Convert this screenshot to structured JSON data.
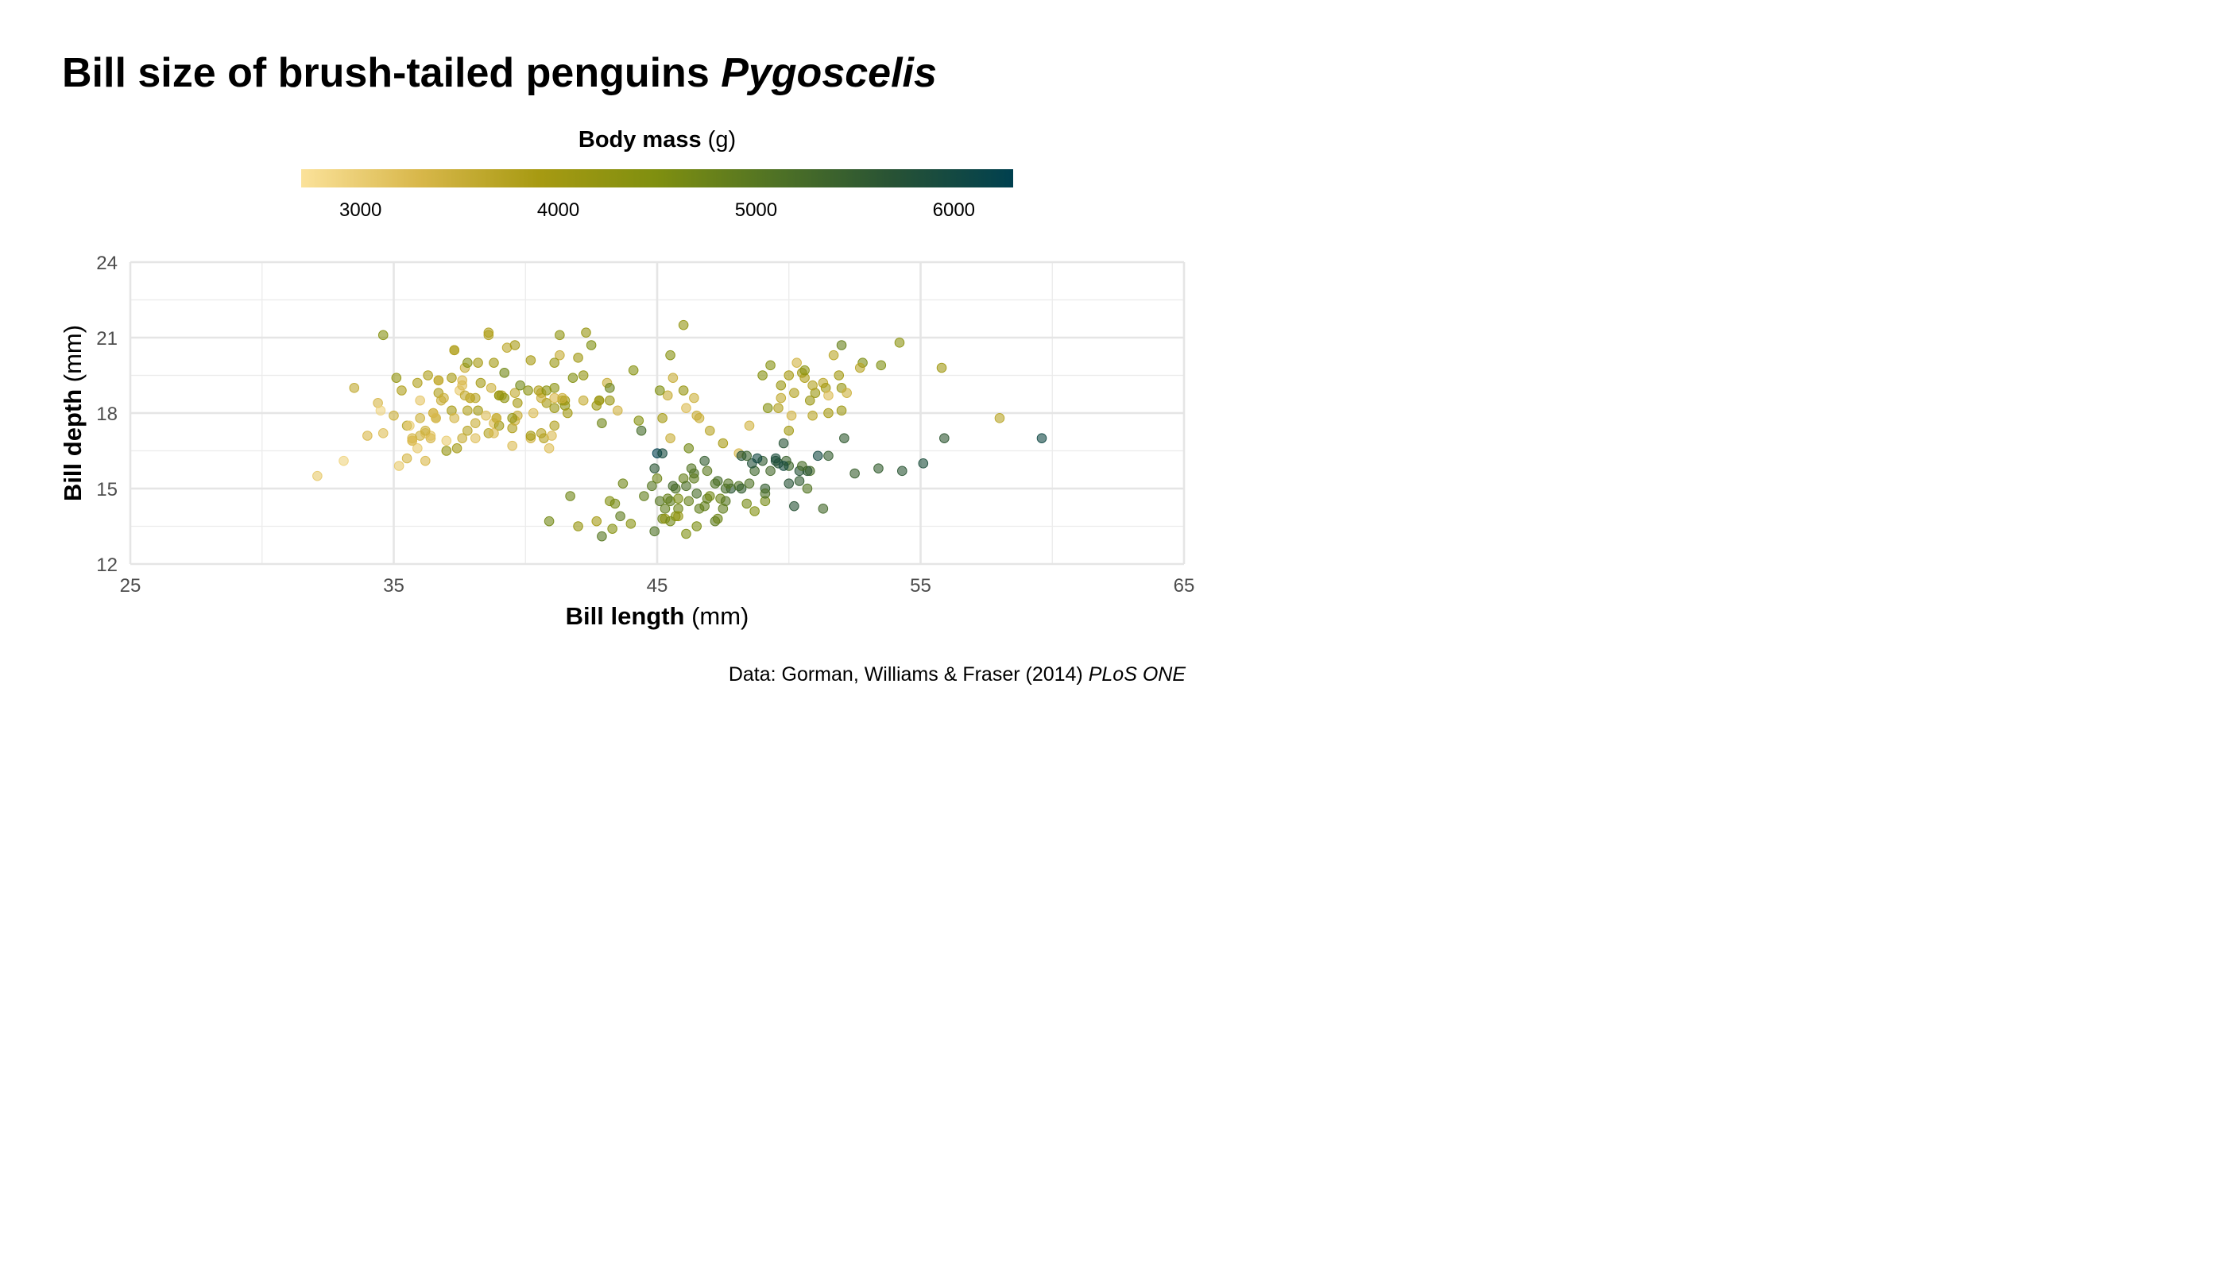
{
  "title": {
    "main": "Bill size of brush-tailed penguins ",
    "genus": "Pygoscelis"
  },
  "legend": {
    "title_bold": "Body mass",
    "title_unit": " (g)",
    "range": [
      2700,
      6300
    ],
    "ticks": [
      3000,
      4000,
      5000,
      6000
    ],
    "colors": [
      "#fbe29a",
      "#d8b74a",
      "#a79a12",
      "#7f8f10",
      "#4f7225",
      "#275235",
      "#00404f"
    ]
  },
  "caption": {
    "text": "Data: Gorman, Williams & Fraser (2014) ",
    "journal": "PLoS ONE"
  },
  "chart_data": {
    "type": "scatter",
    "xlabel_bold": "Bill length",
    "xlabel_unit": " (mm)",
    "ylabel_bold": "Bill depth",
    "ylabel_unit": " (mm)",
    "xlim": [
      25,
      65
    ],
    "ylim": [
      12,
      24
    ],
    "x_ticks": [
      25,
      35,
      45,
      55,
      65
    ],
    "y_ticks": [
      12,
      15,
      18,
      21,
      24
    ],
    "grid": true,
    "legend_position": "top",
    "point_alpha": 0.6,
    "points": [
      [
        32.1,
        15.5,
        3050
      ],
      [
        33.1,
        16.1,
        2900
      ],
      [
        33.5,
        19.0,
        3600
      ],
      [
        34.0,
        17.1,
        3300
      ],
      [
        34.4,
        18.4,
        3325
      ],
      [
        34.5,
        18.1,
        2900
      ],
      [
        34.6,
        21.1,
        4400
      ],
      [
        34.6,
        17.2,
        3200
      ],
      [
        35.0,
        17.9,
        3450
      ],
      [
        35.1,
        19.4,
        4200
      ],
      [
        35.2,
        15.9,
        3050
      ],
      [
        35.3,
        18.9,
        3800
      ],
      [
        35.5,
        17.5,
        3700
      ],
      [
        35.5,
        16.2,
        3350
      ],
      [
        35.6,
        17.5,
        3000
      ],
      [
        35.7,
        16.9,
        3150
      ],
      [
        35.7,
        17.0,
        3350
      ],
      [
        35.9,
        16.6,
        3050
      ],
      [
        35.9,
        19.2,
        3800
      ],
      [
        36.0,
        17.1,
        3450
      ],
      [
        36.0,
        18.5,
        3100
      ],
      [
        36.0,
        17.8,
        3450
      ],
      [
        36.2,
        16.1,
        3300
      ],
      [
        36.2,
        17.2,
        3200
      ],
      [
        36.3,
        19.5,
        3800
      ],
      [
        36.4,
        17.0,
        3325
      ],
      [
        36.4,
        17.1,
        3150
      ],
      [
        36.5,
        18.0,
        3150
      ],
      [
        36.6,
        17.8,
        3700
      ],
      [
        36.7,
        19.3,
        3450
      ],
      [
        36.7,
        18.8,
        3800
      ],
      [
        36.8,
        18.5,
        3500
      ],
      [
        36.9,
        18.6,
        3500
      ],
      [
        37.0,
        16.9,
        3000
      ],
      [
        37.0,
        16.5,
        4150
      ],
      [
        37.2,
        18.1,
        3900
      ],
      [
        37.2,
        19.4,
        3900
      ],
      [
        37.3,
        17.8,
        3350
      ],
      [
        37.3,
        20.5,
        3775
      ],
      [
        37.5,
        18.9,
        3050
      ],
      [
        37.6,
        19.1,
        3250
      ],
      [
        37.6,
        17.0,
        3500
      ],
      [
        37.7,
        18.7,
        3600
      ],
      [
        37.7,
        19.8,
        3500
      ],
      [
        37.8,
        18.1,
        3750
      ],
      [
        37.8,
        17.3,
        3700
      ],
      [
        37.8,
        20.0,
        4400
      ],
      [
        37.9,
        18.6,
        3150
      ],
      [
        38.1,
        18.6,
        3700
      ],
      [
        38.1,
        17.0,
        3175
      ],
      [
        38.2,
        20.0,
        3900
      ],
      [
        38.2,
        18.1,
        3950
      ],
      [
        38.5,
        17.9,
        3200
      ],
      [
        38.6,
        21.2,
        3800
      ],
      [
        38.6,
        17.2,
        3750
      ],
      [
        38.7,
        19.0,
        3450
      ],
      [
        38.8,
        20.0,
        3950
      ],
      [
        38.8,
        17.6,
        3275
      ],
      [
        38.9,
        17.8,
        3625
      ],
      [
        39.0,
        18.7,
        3650
      ],
      [
        39.1,
        18.7,
        3750
      ],
      [
        39.2,
        19.6,
        4675
      ],
      [
        39.2,
        18.6,
        4250
      ],
      [
        39.3,
        20.6,
        3650
      ],
      [
        39.5,
        17.4,
        3800
      ],
      [
        39.5,
        16.7,
        3250
      ],
      [
        39.6,
        17.7,
        3500
      ],
      [
        39.6,
        18.8,
        3600
      ],
      [
        39.7,
        18.4,
        3900
      ],
      [
        39.8,
        19.1,
        4650
      ],
      [
        40.1,
        18.9,
        4300
      ],
      [
        40.2,
        17.0,
        3400
      ],
      [
        40.3,
        18.0,
        3250
      ],
      [
        40.6,
        18.8,
        3550
      ],
      [
        40.7,
        17.0,
        3725
      ],
      [
        40.8,
        18.4,
        3900
      ],
      [
        40.9,
        16.6,
        3200
      ],
      [
        41.0,
        17.1,
        3250
      ],
      [
        41.1,
        19.0,
        4300
      ],
      [
        41.1,
        18.2,
        4100
      ],
      [
        41.3,
        20.3,
        3550
      ],
      [
        41.4,
        18.5,
        3875
      ],
      [
        41.5,
        18.3,
        4300
      ],
      [
        41.6,
        18.0,
        3950
      ],
      [
        41.8,
        19.4,
        4450
      ],
      [
        42.0,
        20.2,
        4000
      ],
      [
        42.2,
        18.5,
        3550
      ],
      [
        42.3,
        21.2,
        4150
      ],
      [
        42.5,
        20.7,
        4500
      ],
      [
        42.7,
        18.3,
        4075
      ],
      [
        42.8,
        18.5,
        4250
      ],
      [
        43.1,
        19.2,
        3500
      ],
      [
        43.2,
        18.5,
        4100
      ],
      [
        43.5,
        18.1,
        3400
      ],
      [
        44.1,
        19.7,
        4400
      ],
      [
        45.2,
        17.8,
        3950
      ],
      [
        45.4,
        18.7,
        3525
      ],
      [
        45.5,
        17.0,
        3500
      ],
      [
        45.6,
        19.4,
        3525
      ],
      [
        46.0,
        18.9,
        4150
      ],
      [
        46.1,
        18.2,
        3250
      ],
      [
        46.4,
        18.6,
        3450
      ],
      [
        46.6,
        17.8,
        3500
      ],
      [
        47.0,
        17.3,
        3700
      ],
      [
        47.5,
        16.8,
        3900
      ],
      [
        48.1,
        16.4,
        3325
      ],
      [
        48.5,
        17.5,
        3400
      ],
      [
        49.0,
        19.5,
        4400
      ],
      [
        49.2,
        18.2,
        4400
      ],
      [
        49.6,
        18.2,
        3775
      ],
      [
        49.7,
        18.6,
        3600
      ],
      [
        50.0,
        19.5,
        3900
      ],
      [
        50.1,
        17.9,
        3400
      ],
      [
        50.5,
        19.6,
        4050
      ],
      [
        50.6,
        19.4,
        3800
      ],
      [
        50.8,
        18.5,
        4100
      ],
      [
        50.9,
        17.9,
        3675
      ],
      [
        51.0,
        18.8,
        4100
      ],
      [
        51.3,
        19.2,
        3650
      ],
      [
        51.4,
        19.0,
        3950
      ],
      [
        51.5,
        18.7,
        3250
      ],
      [
        51.7,
        20.3,
        3675
      ],
      [
        52.0,
        18.1,
        4050
      ],
      [
        52.0,
        19.0,
        4150
      ],
      [
        52.0,
        20.7,
        4800
      ],
      [
        52.2,
        18.8,
        3450
      ],
      [
        52.8,
        20.0,
        4550
      ],
      [
        53.5,
        19.9,
        4500
      ],
      [
        54.2,
        20.8,
        4300
      ],
      [
        55.8,
        19.8,
        4000
      ],
      [
        58.0,
        17.8,
        3700
      ],
      [
        40.9,
        13.7,
        4650
      ],
      [
        41.7,
        14.7,
        4700
      ],
      [
        42.0,
        13.5,
        4150
      ],
      [
        42.7,
        13.7,
        3950
      ],
      [
        42.9,
        13.1,
        5000
      ],
      [
        43.2,
        14.5,
        4450
      ],
      [
        43.3,
        13.4,
        4400
      ],
      [
        43.4,
        14.4,
        4600
      ],
      [
        43.6,
        13.9,
        4900
      ],
      [
        44.0,
        13.6,
        4350
      ],
      [
        44.4,
        17.3,
        5250
      ],
      [
        44.5,
        14.7,
        4850
      ],
      [
        44.9,
        13.3,
        5100
      ],
      [
        45.1,
        14.5,
        5000
      ],
      [
        45.2,
        13.8,
        4750
      ],
      [
        45.3,
        13.8,
        4200
      ],
      [
        45.4,
        14.6,
        4800
      ],
      [
        45.5,
        13.7,
        4650
      ],
      [
        45.7,
        13.9,
        4400
      ],
      [
        45.8,
        14.2,
        4700
      ],
      [
        46.1,
        13.2,
        4500
      ],
      [
        46.2,
        14.5,
        4800
      ],
      [
        46.4,
        15.6,
        5150
      ],
      [
        46.5,
        13.5,
        4550
      ],
      [
        46.8,
        14.3,
        4850
      ],
      [
        47.2,
        13.7,
        4925
      ],
      [
        47.4,
        14.6,
        4725
      ],
      [
        47.8,
        15.0,
        5650
      ],
      [
        48.1,
        15.1,
        5100
      ],
      [
        48.4,
        14.4,
        4625
      ],
      [
        48.7,
        14.1,
        4450
      ],
      [
        49.1,
        14.5,
        4625
      ],
      [
        49.5,
        16.1,
        5800
      ],
      [
        50.0,
        15.2,
        5700
      ],
      [
        50.4,
        15.3,
        5550
      ],
      [
        50.7,
        15.0,
        5050
      ],
      [
        51.1,
        16.3,
        6000
      ],
      [
        51.5,
        16.3,
        5500
      ],
      [
        52.1,
        17.0,
        5550
      ],
      [
        52.5,
        15.6,
        5450
      ],
      [
        53.4,
        15.8,
        5500
      ],
      [
        54.3,
        15.7,
        5650
      ],
      [
        55.1,
        16.0,
        5850
      ],
      [
        55.9,
        17.0,
        5600
      ],
      [
        59.6,
        17.0,
        6050
      ],
      [
        49.8,
        16.8,
        5700
      ],
      [
        50.2,
        14.3,
        5700
      ],
      [
        49.1,
        15.0,
        5500
      ],
      [
        50.4,
        15.7,
        5750
      ],
      [
        46.9,
        14.6,
        4875
      ],
      [
        47.3,
        15.3,
        5250
      ],
      [
        48.7,
        15.7,
        5350
      ],
      [
        49.0,
        16.1,
        5550
      ],
      [
        45.0,
        16.4,
        6300
      ],
      [
        48.2,
        16.3,
        5800
      ],
      [
        45.7,
        15.0,
        5100
      ],
      [
        46.3,
        15.8,
        5050
      ],
      [
        47.6,
        14.5,
        5000
      ],
      [
        48.6,
        16.0,
        5800
      ],
      [
        44.3,
        17.7,
        4400
      ],
      [
        43.7,
        15.2,
        4700
      ],
      [
        46.0,
        21.5,
        4200
      ],
      [
        45.5,
        20.3,
        4375
      ],
      [
        45.1,
        18.9,
        4500
      ],
      [
        46.2,
        16.6,
        4650
      ],
      [
        49.9,
        16.1,
        5400
      ],
      [
        45.0,
        15.4,
        4700
      ],
      [
        46.6,
        14.2,
        4850
      ],
      [
        47.6,
        15.0,
        5200
      ],
      [
        45.2,
        16.4,
        5950
      ],
      [
        46.8,
        16.1,
        5500
      ],
      [
        44.8,
        15.1,
        5000
      ],
      [
        45.5,
        14.5,
        4900
      ],
      [
        48.8,
        16.2,
        6000
      ],
      [
        50.8,
        15.7,
        5200
      ],
      [
        47.0,
        14.7,
        4650
      ],
      [
        46.0,
        15.4,
        4800
      ],
      [
        48.2,
        15.0,
        5500
      ],
      [
        49.3,
        15.7,
        5300
      ],
      [
        45.8,
        13.9,
        4200
      ],
      [
        50.7,
        15.7,
        5650
      ],
      [
        47.7,
        15.2,
        5050
      ],
      [
        46.5,
        14.8,
        5200
      ],
      [
        49.6,
        16.0,
        5700
      ],
      [
        51.3,
        14.2,
        5300
      ],
      [
        45.3,
        14.2,
        4850
      ],
      [
        46.4,
        15.4,
        4900
      ],
      [
        47.3,
        13.8,
        4725
      ],
      [
        48.5,
        15.2,
        5100
      ],
      [
        44.9,
        15.8,
        5650
      ],
      [
        45.6,
        15.1,
        5300
      ],
      [
        47.5,
        14.2,
        4875
      ],
      [
        49.1,
        14.8,
        5150
      ],
      [
        50.0,
        15.9,
        5350
      ],
      [
        48.4,
        16.3,
        5400
      ],
      [
        45.8,
        14.6,
        4550
      ],
      [
        46.9,
        15.7,
        4950
      ],
      [
        47.2,
        15.2,
        5100
      ],
      [
        50.5,
        15.9,
        5200
      ],
      [
        49.5,
        16.2,
        5850
      ],
      [
        46.1,
        15.1,
        5150
      ],
      [
        49.8,
        15.9,
        5950
      ],
      [
        46.5,
        17.9,
        3500
      ],
      [
        50.9,
        19.1,
        3750
      ],
      [
        50.3,
        20.0,
        3400
      ],
      [
        51.5,
        18.0,
        3900
      ],
      [
        49.7,
        19.1,
        4100
      ],
      [
        49.3,
        19.9,
        4400
      ],
      [
        50.2,
        18.8,
        3775
      ],
      [
        50.6,
        19.7,
        4300
      ],
      [
        50.0,
        17.3,
        3975
      ],
      [
        51.9,
        19.5,
        3950
      ],
      [
        52.7,
        19.8,
        3700
      ],
      [
        40.6,
        18.6,
        3550
      ],
      [
        41.3,
        21.1,
        4250
      ],
      [
        38.6,
        21.1,
        3750
      ],
      [
        41.1,
        20.0,
        4100
      ],
      [
        38.3,
        19.2,
        3950
      ],
      [
        40.5,
        18.9,
        3800
      ],
      [
        37.6,
        19.3,
        3300
      ],
      [
        39.6,
        20.7,
        3900
      ],
      [
        36.7,
        19.3,
        3600
      ],
      [
        39.7,
        17.9,
        3500
      ],
      [
        40.8,
        18.9,
        4300
      ],
      [
        42.9,
        17.6,
        4700
      ],
      [
        41.1,
        18.6,
        3300
      ],
      [
        37.4,
        16.6,
        3950
      ],
      [
        39.0,
        17.5,
        4000
      ],
      [
        38.1,
        17.6,
        3500
      ],
      [
        40.6,
        17.2,
        3725
      ],
      [
        42.2,
        19.5,
        4200
      ],
      [
        41.5,
        18.5,
        4000
      ],
      [
        37.9,
        18.6,
        3650
      ],
      [
        43.2,
        19.0,
        4775
      ],
      [
        36.2,
        17.3,
        3450
      ],
      [
        40.2,
        20.1,
        3900
      ],
      [
        38.8,
        17.2,
        3300
      ],
      [
        41.4,
        18.6,
        3450
      ],
      [
        37.3,
        20.5,
        3750
      ],
      [
        39.0,
        18.7,
        4200
      ],
      [
        36.5,
        18.0,
        3400
      ],
      [
        42.8,
        18.5,
        4000
      ],
      [
        35.7,
        16.9,
        3250
      ],
      [
        41.1,
        17.5,
        3800
      ],
      [
        40.2,
        17.1,
        3950
      ],
      [
        38.9,
        17.8,
        3450
      ],
      [
        39.5,
        17.8,
        4200
      ],
      [
        36.6,
        17.8,
        3250
      ]
    ]
  }
}
